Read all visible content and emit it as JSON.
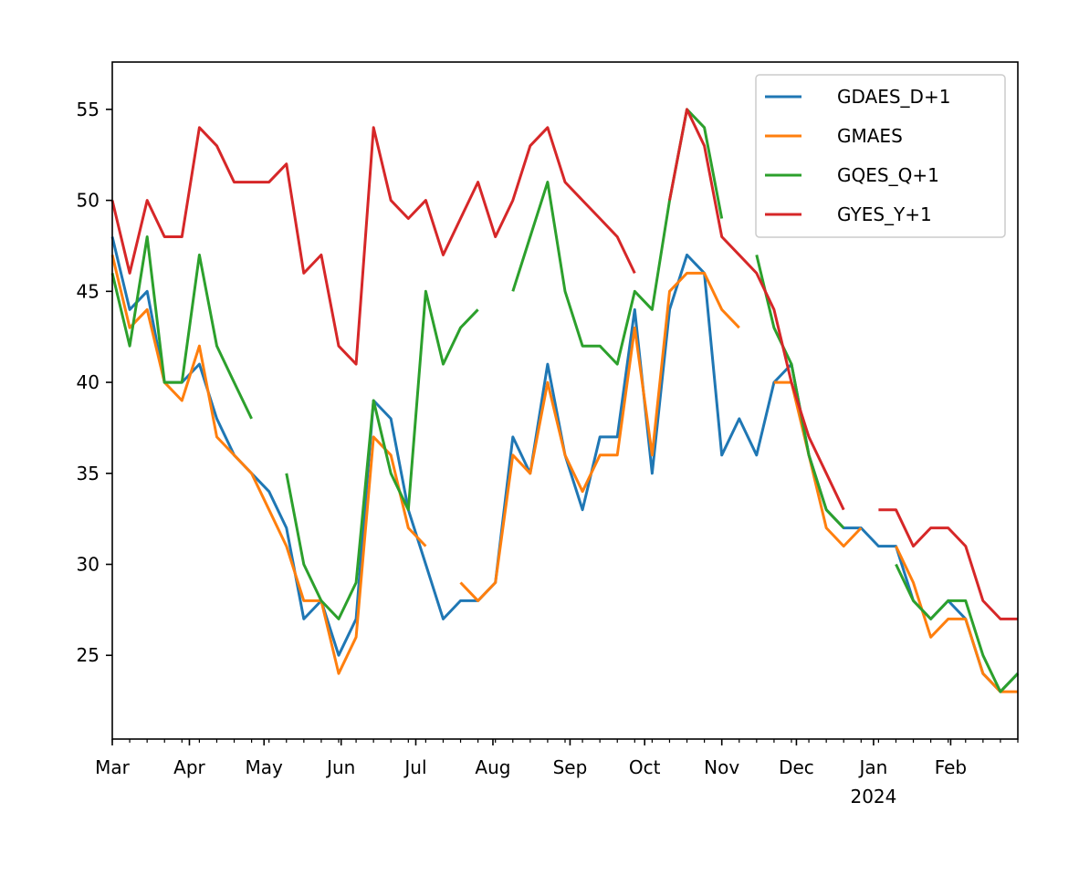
{
  "chart_data": {
    "type": "line",
    "title": "",
    "xlabel": "",
    "ylabel": "",
    "xlim": [
      "2023-03-01",
      "2024-02-28"
    ],
    "ylim": [
      20.4,
      57.6
    ],
    "yticks": [
      25,
      30,
      35,
      40,
      45,
      50,
      55
    ],
    "xticks": [
      {
        "date": "2023-03-01",
        "label": "Mar"
      },
      {
        "date": "2023-04-01",
        "label": "Apr"
      },
      {
        "date": "2023-05-01",
        "label": "May"
      },
      {
        "date": "2023-06-01",
        "label": "Jun"
      },
      {
        "date": "2023-07-01",
        "label": "Jul"
      },
      {
        "date": "2023-08-01",
        "label": "Aug"
      },
      {
        "date": "2023-09-01",
        "label": "Sep"
      },
      {
        "date": "2023-10-01",
        "label": "Oct"
      },
      {
        "date": "2023-11-01",
        "label": "Nov"
      },
      {
        "date": "2023-12-01",
        "label": "Dec"
      },
      {
        "date": "2024-01-01",
        "label": "Jan",
        "sublabel": "2024"
      },
      {
        "date": "2024-02-01",
        "label": "Feb"
      }
    ],
    "grid": false,
    "legend_position": "top-right",
    "x": [
      "2023-03-01",
      "2023-03-08",
      "2023-03-15",
      "2023-03-22",
      "2023-03-29",
      "2023-04-05",
      "2023-04-12",
      "2023-04-19",
      "2023-04-26",
      "2023-05-03",
      "2023-05-10",
      "2023-05-17",
      "2023-05-24",
      "2023-05-31",
      "2023-06-07",
      "2023-06-14",
      "2023-06-21",
      "2023-06-28",
      "2023-07-05",
      "2023-07-12",
      "2023-07-19",
      "2023-07-26",
      "2023-08-02",
      "2023-08-09",
      "2023-08-16",
      "2023-08-23",
      "2023-08-30",
      "2023-09-06",
      "2023-09-13",
      "2023-09-20",
      "2023-09-27",
      "2023-10-04",
      "2023-10-11",
      "2023-10-18",
      "2023-10-25",
      "2023-11-01",
      "2023-11-08",
      "2023-11-15",
      "2023-11-22",
      "2023-11-29",
      "2023-12-06",
      "2023-12-13",
      "2023-12-20",
      "2023-12-27",
      "2024-01-03",
      "2024-01-10",
      "2024-01-17",
      "2024-01-24",
      "2024-01-31",
      "2024-02-07",
      "2024-02-14",
      "2024-02-21",
      "2024-02-28"
    ],
    "series": [
      {
        "name": "GDAES_D+1",
        "color": "#1f77b4",
        "values": [
          48,
          44,
          45,
          40,
          40,
          41,
          38,
          36,
          35,
          34,
          32,
          27,
          28,
          25,
          27,
          39,
          38,
          33,
          30,
          27,
          28,
          28,
          29,
          37,
          35,
          41,
          36,
          33,
          37,
          37,
          44,
          35,
          44,
          47,
          46,
          36,
          38,
          36,
          40,
          41,
          36,
          33,
          32,
          32,
          31,
          31,
          28,
          27,
          28,
          27,
          24,
          23,
          24
        ]
      },
      {
        "name": "GMAES",
        "color": "#ff7f0e",
        "values": [
          47,
          43,
          44,
          40,
          39,
          42,
          37,
          36,
          35,
          33,
          31,
          28,
          28,
          24,
          26,
          37,
          36,
          32,
          31,
          null,
          29,
          28,
          29,
          36,
          35,
          40,
          36,
          34,
          36,
          36,
          43,
          36,
          45,
          46,
          46,
          44,
          43,
          null,
          40,
          40,
          36,
          32,
          31,
          32,
          null,
          31,
          29,
          26,
          27,
          27,
          24,
          23,
          23
        ]
      },
      {
        "name": "GQES_Q+1",
        "color": "#2ca02c",
        "values": [
          46,
          42,
          48,
          40,
          40,
          47,
          42,
          40,
          38,
          null,
          35,
          30,
          28,
          27,
          29,
          39,
          35,
          33,
          45,
          41,
          43,
          44,
          null,
          45,
          48,
          51,
          45,
          42,
          42,
          41,
          45,
          44,
          50,
          55,
          54,
          49,
          null,
          47,
          43,
          41,
          36,
          33,
          32,
          null,
          null,
          30,
          28,
          27,
          28,
          28,
          25,
          23,
          24
        ]
      },
      {
        "name": "GYES_Y+1",
        "color": "#d62728",
        "values": [
          50,
          46,
          50,
          48,
          48,
          54,
          53,
          51,
          51,
          51,
          52,
          46,
          47,
          42,
          41,
          54,
          50,
          49,
          50,
          47,
          49,
          51,
          48,
          50,
          53,
          54,
          51,
          50,
          49,
          48,
          46,
          null,
          50,
          55,
          53,
          48,
          47,
          46,
          44,
          40,
          37,
          35,
          33,
          null,
          33,
          33,
          31,
          32,
          32,
          31,
          28,
          27,
          27
        ]
      }
    ]
  }
}
